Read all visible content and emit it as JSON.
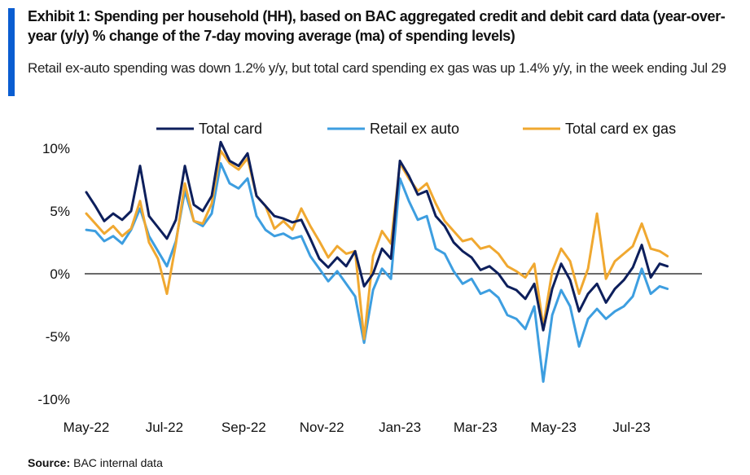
{
  "header": {
    "title": "Exhibit 1: Spending per household (HH), based on BAC aggregated credit and debit card data (year-over-year (y/y)  % change of the 7-day moving average (ma)  of spending levels)",
    "subtitle": "Retail ex-auto spending was down 1.2% y/y, but total card spending ex gas was up 1.4% y/y, in the week ending Jul 29",
    "accent_color": "#0a5dd1"
  },
  "footer": {
    "source_label": "Source:",
    "source_text": "BAC internal data"
  },
  "chart_data": {
    "type": "line",
    "title": "",
    "xlabel": "",
    "ylabel": "",
    "ylim": [
      -10,
      10
    ],
    "yticks": [
      10,
      5,
      0,
      -5,
      -10
    ],
    "ytick_labels": [
      "10%",
      "5%",
      "0%",
      "-5%",
      "-10%"
    ],
    "xlim": [
      "2022-05-01",
      "2023-08-25"
    ],
    "xticks": [
      "2022-05-01",
      "2022-07-01",
      "2022-09-01",
      "2022-11-01",
      "2023-01-01",
      "2023-03-01",
      "2023-05-01",
      "2023-07-01"
    ],
    "xtick_labels": [
      "May-22",
      "Jul-22",
      "Sep-22",
      "Nov-22",
      "Jan-23",
      "Mar-23",
      "May-23",
      "Jul-23"
    ],
    "grid": false,
    "zero_line": true,
    "legend_position": "top",
    "series": [
      {
        "name": "Total card",
        "color": "#0d1f5c",
        "points": [
          [
            "2022-05-01",
            6.5
          ],
          [
            "2022-05-08",
            5.4
          ],
          [
            "2022-05-15",
            4.2
          ],
          [
            "2022-05-22",
            4.8
          ],
          [
            "2022-05-29",
            4.3
          ],
          [
            "2022-06-05",
            5.0
          ],
          [
            "2022-06-12",
            8.6
          ],
          [
            "2022-06-19",
            4.6
          ],
          [
            "2022-06-26",
            3.7
          ],
          [
            "2022-07-03",
            2.8
          ],
          [
            "2022-07-10",
            4.3
          ],
          [
            "2022-07-17",
            8.6
          ],
          [
            "2022-07-24",
            5.5
          ],
          [
            "2022-07-31",
            5.0
          ],
          [
            "2022-08-07",
            6.2
          ],
          [
            "2022-08-14",
            10.5
          ],
          [
            "2022-08-21",
            9.0
          ],
          [
            "2022-08-28",
            8.6
          ],
          [
            "2022-09-04",
            9.6
          ],
          [
            "2022-09-11",
            6.2
          ],
          [
            "2022-09-18",
            5.4
          ],
          [
            "2022-09-25",
            4.6
          ],
          [
            "2022-10-02",
            4.4
          ],
          [
            "2022-10-09",
            4.1
          ],
          [
            "2022-10-16",
            4.3
          ],
          [
            "2022-10-23",
            2.8
          ],
          [
            "2022-10-30",
            1.2
          ],
          [
            "2022-11-06",
            0.5
          ],
          [
            "2022-11-13",
            1.3
          ],
          [
            "2022-11-20",
            0.6
          ],
          [
            "2022-11-27",
            1.8
          ],
          [
            "2022-12-04",
            -1.0
          ],
          [
            "2022-12-11",
            0.0
          ],
          [
            "2022-12-18",
            2.0
          ],
          [
            "2022-12-25",
            1.2
          ],
          [
            "2023-01-01",
            9.0
          ],
          [
            "2023-01-08",
            7.8
          ],
          [
            "2023-01-15",
            6.3
          ],
          [
            "2023-01-22",
            6.6
          ],
          [
            "2023-01-29",
            4.6
          ],
          [
            "2023-02-05",
            3.8
          ],
          [
            "2023-02-12",
            2.5
          ],
          [
            "2023-02-19",
            1.8
          ],
          [
            "2023-02-26",
            1.3
          ],
          [
            "2023-03-05",
            0.3
          ],
          [
            "2023-03-12",
            0.6
          ],
          [
            "2023-03-19",
            0.0
          ],
          [
            "2023-03-26",
            -1.0
          ],
          [
            "2023-04-02",
            -1.3
          ],
          [
            "2023-04-09",
            -2.0
          ],
          [
            "2023-04-16",
            -0.8
          ],
          [
            "2023-04-23",
            -4.5
          ],
          [
            "2023-04-30",
            -1.2
          ],
          [
            "2023-05-07",
            0.8
          ],
          [
            "2023-05-14",
            -0.5
          ],
          [
            "2023-05-21",
            -3.0
          ],
          [
            "2023-05-28",
            -1.6
          ],
          [
            "2023-06-04",
            -0.8
          ],
          [
            "2023-06-11",
            -2.3
          ],
          [
            "2023-06-18",
            -1.2
          ],
          [
            "2023-06-25",
            -0.5
          ],
          [
            "2023-07-02",
            0.5
          ],
          [
            "2023-07-09",
            2.3
          ],
          [
            "2023-07-16",
            -0.3
          ],
          [
            "2023-07-23",
            0.8
          ],
          [
            "2023-07-29",
            0.6
          ]
        ]
      },
      {
        "name": "Retail ex auto",
        "color": "#3d9ee0",
        "points": [
          [
            "2022-05-01",
            3.5
          ],
          [
            "2022-05-08",
            3.4
          ],
          [
            "2022-05-15",
            2.6
          ],
          [
            "2022-05-22",
            3.0
          ],
          [
            "2022-05-29",
            2.4
          ],
          [
            "2022-06-05",
            3.5
          ],
          [
            "2022-06-12",
            5.2
          ],
          [
            "2022-06-19",
            3.0
          ],
          [
            "2022-06-26",
            1.8
          ],
          [
            "2022-07-03",
            0.6
          ],
          [
            "2022-07-10",
            2.6
          ],
          [
            "2022-07-17",
            6.6
          ],
          [
            "2022-07-24",
            4.2
          ],
          [
            "2022-07-31",
            3.8
          ],
          [
            "2022-08-07",
            4.8
          ],
          [
            "2022-08-14",
            8.8
          ],
          [
            "2022-08-21",
            7.2
          ],
          [
            "2022-08-28",
            6.8
          ],
          [
            "2022-09-04",
            7.6
          ],
          [
            "2022-09-11",
            4.6
          ],
          [
            "2022-09-18",
            3.5
          ],
          [
            "2022-09-25",
            3.0
          ],
          [
            "2022-10-02",
            3.2
          ],
          [
            "2022-10-09",
            2.8
          ],
          [
            "2022-10-16",
            3.0
          ],
          [
            "2022-10-23",
            1.4
          ],
          [
            "2022-10-30",
            0.4
          ],
          [
            "2022-11-06",
            -0.6
          ],
          [
            "2022-11-13",
            0.2
          ],
          [
            "2022-11-20",
            -0.8
          ],
          [
            "2022-11-27",
            -1.8
          ],
          [
            "2022-12-04",
            -5.5
          ],
          [
            "2022-12-11",
            -1.3
          ],
          [
            "2022-12-18",
            0.4
          ],
          [
            "2022-12-25",
            -0.4
          ],
          [
            "2023-01-01",
            7.6
          ],
          [
            "2023-01-08",
            5.8
          ],
          [
            "2023-01-15",
            4.3
          ],
          [
            "2023-01-22",
            4.6
          ],
          [
            "2023-01-29",
            2.0
          ],
          [
            "2023-02-05",
            1.6
          ],
          [
            "2023-02-12",
            0.2
          ],
          [
            "2023-02-19",
            -0.8
          ],
          [
            "2023-02-26",
            -0.4
          ],
          [
            "2023-03-05",
            -1.6
          ],
          [
            "2023-03-12",
            -1.3
          ],
          [
            "2023-03-19",
            -1.9
          ],
          [
            "2023-03-26",
            -3.3
          ],
          [
            "2023-04-02",
            -3.6
          ],
          [
            "2023-04-09",
            -4.4
          ],
          [
            "2023-04-16",
            -2.6
          ],
          [
            "2023-04-23",
            -8.6
          ],
          [
            "2023-04-30",
            -3.3
          ],
          [
            "2023-05-07",
            -1.3
          ],
          [
            "2023-05-14",
            -2.6
          ],
          [
            "2023-05-21",
            -5.8
          ],
          [
            "2023-05-28",
            -3.6
          ],
          [
            "2023-06-04",
            -2.8
          ],
          [
            "2023-06-11",
            -3.6
          ],
          [
            "2023-06-18",
            -3.0
          ],
          [
            "2023-06-25",
            -2.6
          ],
          [
            "2023-07-02",
            -1.8
          ],
          [
            "2023-07-09",
            0.4
          ],
          [
            "2023-07-16",
            -1.6
          ],
          [
            "2023-07-23",
            -1.0
          ],
          [
            "2023-07-29",
            -1.2
          ]
        ]
      },
      {
        "name": "Total card ex gas",
        "color": "#f0a830",
        "points": [
          [
            "2022-05-01",
            4.8
          ],
          [
            "2022-05-08",
            4.0
          ],
          [
            "2022-05-15",
            3.2
          ],
          [
            "2022-05-22",
            3.8
          ],
          [
            "2022-05-29",
            3.0
          ],
          [
            "2022-06-05",
            3.6
          ],
          [
            "2022-06-12",
            5.8
          ],
          [
            "2022-06-19",
            2.5
          ],
          [
            "2022-06-26",
            1.2
          ],
          [
            "2022-07-03",
            -1.6
          ],
          [
            "2022-07-10",
            2.4
          ],
          [
            "2022-07-17",
            7.2
          ],
          [
            "2022-07-24",
            4.2
          ],
          [
            "2022-07-31",
            4.0
          ],
          [
            "2022-08-07",
            5.6
          ],
          [
            "2022-08-14",
            9.8
          ],
          [
            "2022-08-21",
            8.8
          ],
          [
            "2022-08-28",
            8.3
          ],
          [
            "2022-09-04",
            9.2
          ],
          [
            "2022-09-11",
            6.2
          ],
          [
            "2022-09-18",
            5.4
          ],
          [
            "2022-09-25",
            3.6
          ],
          [
            "2022-10-02",
            4.2
          ],
          [
            "2022-10-09",
            3.5
          ],
          [
            "2022-10-16",
            5.2
          ],
          [
            "2022-10-23",
            3.8
          ],
          [
            "2022-10-30",
            2.6
          ],
          [
            "2022-11-06",
            1.3
          ],
          [
            "2022-11-13",
            2.2
          ],
          [
            "2022-11-20",
            1.6
          ],
          [
            "2022-11-27",
            1.8
          ],
          [
            "2022-12-04",
            -5.2
          ],
          [
            "2022-12-11",
            1.4
          ],
          [
            "2022-12-18",
            3.4
          ],
          [
            "2022-12-25",
            2.4
          ],
          [
            "2023-01-01",
            8.8
          ],
          [
            "2023-01-08",
            7.6
          ],
          [
            "2023-01-15",
            6.6
          ],
          [
            "2023-01-22",
            7.2
          ],
          [
            "2023-01-29",
            5.6
          ],
          [
            "2023-02-05",
            4.2
          ],
          [
            "2023-02-12",
            3.4
          ],
          [
            "2023-02-19",
            2.6
          ],
          [
            "2023-02-26",
            2.8
          ],
          [
            "2023-03-05",
            2.0
          ],
          [
            "2023-03-12",
            2.2
          ],
          [
            "2023-03-19",
            1.6
          ],
          [
            "2023-03-26",
            0.6
          ],
          [
            "2023-04-02",
            0.2
          ],
          [
            "2023-04-09",
            -0.3
          ],
          [
            "2023-04-16",
            0.8
          ],
          [
            "2023-04-23",
            -4.2
          ],
          [
            "2023-04-30",
            0.2
          ],
          [
            "2023-05-07",
            2.0
          ],
          [
            "2023-05-14",
            1.0
          ],
          [
            "2023-05-21",
            -1.6
          ],
          [
            "2023-05-28",
            0.4
          ],
          [
            "2023-06-04",
            4.8
          ],
          [
            "2023-06-11",
            -0.4
          ],
          [
            "2023-06-18",
            1.0
          ],
          [
            "2023-06-25",
            1.6
          ],
          [
            "2023-07-02",
            2.2
          ],
          [
            "2023-07-09",
            4.0
          ],
          [
            "2023-07-16",
            2.0
          ],
          [
            "2023-07-23",
            1.8
          ],
          [
            "2023-07-29",
            1.4
          ]
        ]
      }
    ]
  }
}
